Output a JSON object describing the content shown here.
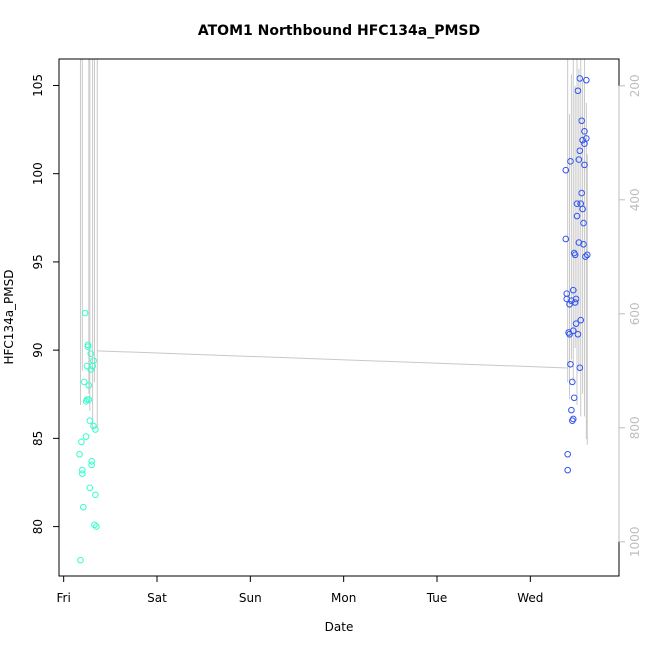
{
  "chart_data": {
    "type": "scatter",
    "title": "ATOM1 Northbound HFC134a_PMSD",
    "xlabel": "Date",
    "ylabel": "HFC134a_PMSD",
    "x_ticks": [
      "Fri",
      "Sat",
      "Sun",
      "Mon",
      "Tue",
      "Wed"
    ],
    "xlim_days": [
      -0.05,
      5.95
    ],
    "ylim": [
      77.2,
      106.5
    ],
    "y_ticks": [
      80,
      85,
      90,
      95,
      100,
      105
    ],
    "y2_ticks": [
      200,
      400,
      600,
      800,
      1000
    ],
    "y2lim": [
      1060,
      153
    ],
    "colors": {
      "friday_points": "#33ffcc",
      "wednesday_points": "#3355ee",
      "altitude_trace": "#c8c8c8",
      "axis": "#000000",
      "right_axis": "#bdbdbd"
    },
    "series": [
      {
        "color": "#33ffcc",
        "points": [
          [
            0.18,
            78.1
          ],
          [
            0.2,
            83.2
          ],
          [
            0.21,
            81.1
          ],
          [
            0.22,
            88.2
          ],
          [
            0.23,
            92.1
          ],
          [
            0.24,
            85.1
          ],
          [
            0.25,
            87.2
          ],
          [
            0.26,
            90.3
          ],
          [
            0.27,
            88.0
          ],
          [
            0.28,
            82.2
          ],
          [
            0.29,
            89.8
          ],
          [
            0.3,
            83.5
          ],
          [
            0.31,
            89.1
          ],
          [
            0.32,
            85.7
          ],
          [
            0.33,
            80.1
          ],
          [
            0.34,
            81.8
          ],
          [
            0.35,
            80.0
          ],
          [
            0.19,
            84.8
          ],
          [
            0.17,
            84.1
          ],
          [
            0.2,
            83.0
          ],
          [
            0.24,
            87.1
          ],
          [
            0.26,
            90.2
          ],
          [
            0.27,
            87.2
          ],
          [
            0.28,
            86.0
          ],
          [
            0.3,
            83.7
          ],
          [
            0.32,
            89.4
          ],
          [
            0.34,
            85.5
          ],
          [
            0.25,
            89.1
          ],
          [
            0.29,
            88.9
          ]
        ]
      },
      {
        "color": "#3355ee",
        "points": [
          [
            5.38,
            100.2
          ],
          [
            5.38,
            96.3
          ],
          [
            5.39,
            93.2
          ],
          [
            5.39,
            92.9
          ],
          [
            5.4,
            84.1
          ],
          [
            5.4,
            83.2
          ],
          [
            5.41,
            91.0
          ],
          [
            5.42,
            92.6
          ],
          [
            5.42,
            90.9
          ],
          [
            5.43,
            100.7
          ],
          [
            5.43,
            89.2
          ],
          [
            5.44,
            86.6
          ],
          [
            5.44,
            92.8
          ],
          [
            5.45,
            86.0
          ],
          [
            5.45,
            88.2
          ],
          [
            5.46,
            93.4
          ],
          [
            5.46,
            91.1
          ],
          [
            5.46,
            86.1
          ],
          [
            5.47,
            87.3
          ],
          [
            5.47,
            95.5
          ],
          [
            5.48,
            92.7
          ],
          [
            5.48,
            95.4
          ],
          [
            5.49,
            92.9
          ],
          [
            5.49,
            91.5
          ],
          [
            5.5,
            98.3
          ],
          [
            5.5,
            97.6
          ],
          [
            5.51,
            104.7
          ],
          [
            5.51,
            90.9
          ],
          [
            5.52,
            100.8
          ],
          [
            5.52,
            96.1
          ],
          [
            5.53,
            105.4
          ],
          [
            5.53,
            101.3
          ],
          [
            5.53,
            89.0
          ],
          [
            5.54,
            98.3
          ],
          [
            5.54,
            91.7
          ],
          [
            5.55,
            103.0
          ],
          [
            5.55,
            98.9
          ],
          [
            5.56,
            101.9
          ],
          [
            5.56,
            98.0
          ],
          [
            5.57,
            97.2
          ],
          [
            5.57,
            96.0
          ],
          [
            5.58,
            102.4
          ],
          [
            5.58,
            100.5
          ],
          [
            5.58,
            101.7
          ],
          [
            5.59,
            95.3
          ],
          [
            5.6,
            105.3
          ],
          [
            5.6,
            102.0
          ],
          [
            5.61,
            95.4
          ]
        ]
      }
    ],
    "altitude_trace": {
      "note_free": true,
      "friday_segments": [
        [
          0.18,
          153,
          0.18,
          760
        ],
        [
          0.2,
          153,
          0.2,
          700
        ],
        [
          0.27,
          153,
          0.27,
          740
        ],
        [
          0.28,
          153,
          0.28,
          770
        ],
        [
          0.3,
          153,
          0.3,
          153
        ],
        [
          0.31,
          153,
          0.31,
          800
        ],
        [
          0.33,
          153,
          0.33,
          720
        ],
        [
          0.36,
          153,
          0.36,
          800
        ]
      ],
      "wednesday_segments": [
        [
          5.4,
          153,
          5.4,
          720
        ],
        [
          5.42,
          250,
          5.42,
          750
        ],
        [
          5.44,
          180,
          5.44,
          680
        ],
        [
          5.46,
          153,
          5.46,
          720
        ],
        [
          5.48,
          200,
          5.48,
          660
        ],
        [
          5.5,
          153,
          5.5,
          760
        ],
        [
          5.52,
          170,
          5.52,
          700
        ],
        [
          5.54,
          153,
          5.54,
          780
        ],
        [
          5.56,
          190,
          5.56,
          740
        ],
        [
          5.58,
          153,
          5.58,
          780
        ],
        [
          5.6,
          230,
          5.6,
          820
        ],
        [
          5.61,
          320,
          5.61,
          830
        ]
      ],
      "bridge": [
        [
          0.36,
          665
        ],
        [
          5.4,
          695
        ]
      ]
    }
  }
}
